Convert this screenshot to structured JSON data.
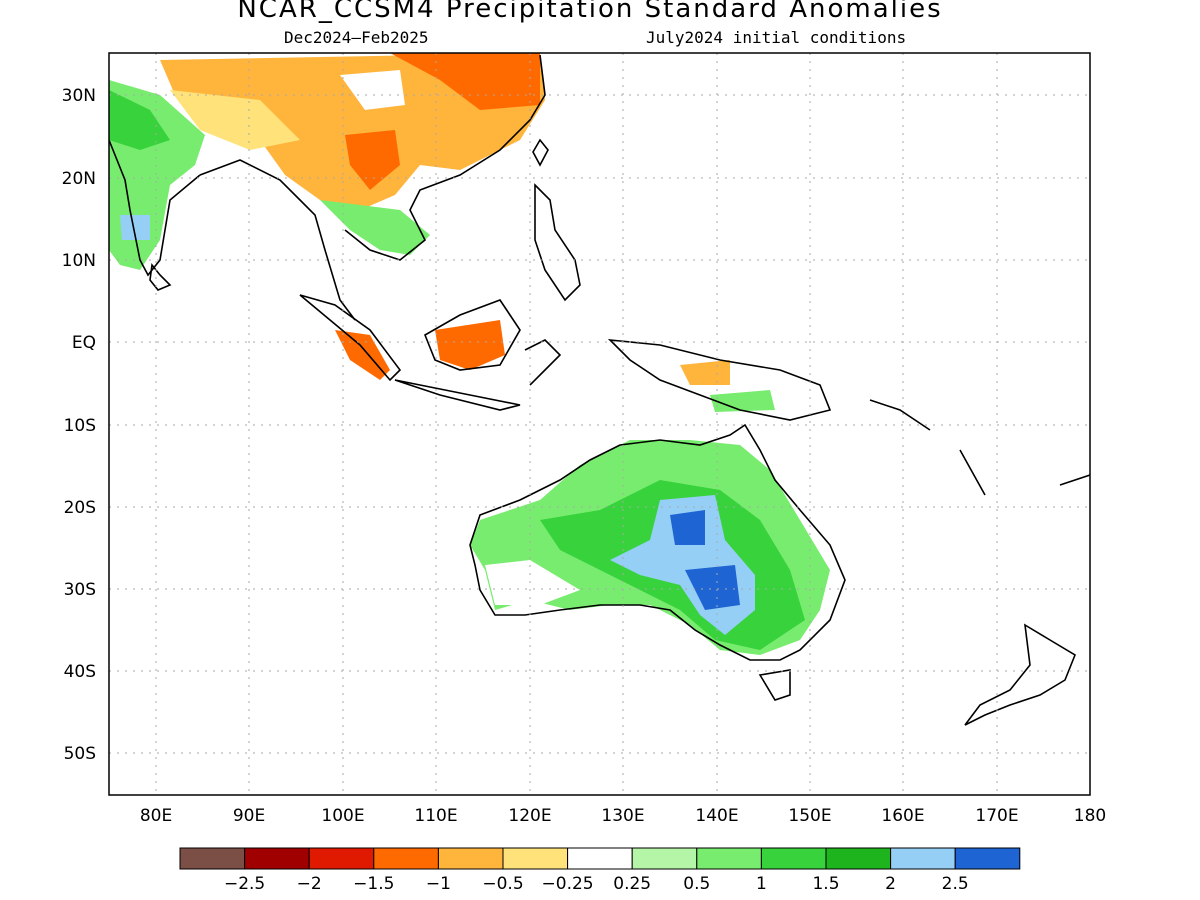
{
  "title": "NCAR_CCSM4 Precipitation Standard Anomalies",
  "subtitle_left": "Dec2024–Feb2025",
  "subtitle_right": "July2024 initial conditions",
  "lon_ticks": [
    "80E",
    "90E",
    "100E",
    "110E",
    "120E",
    "130E",
    "140E",
    "150E",
    "160E",
    "170E",
    "180"
  ],
  "lat_ticks": [
    "30N",
    "20N",
    "10N",
    "EQ",
    "10S",
    "20S",
    "30S",
    "40S",
    "50S"
  ],
  "colorbar": {
    "colors": [
      "#7b4e46",
      "#a00000",
      "#e01a00",
      "#ff6a00",
      "#ffb43c",
      "#ffe37a",
      "#ffffff",
      "#b4f5a8",
      "#78ec6e",
      "#37d23c",
      "#1eb41e",
      "#96cff5",
      "#1e64d2"
    ],
    "labels": [
      "−2.5",
      "−2",
      "−1.5",
      "−1",
      "−0.5",
      "−0.25",
      "0.25",
      "0.5",
      "1",
      "1.5",
      "2",
      "2.5"
    ]
  }
}
